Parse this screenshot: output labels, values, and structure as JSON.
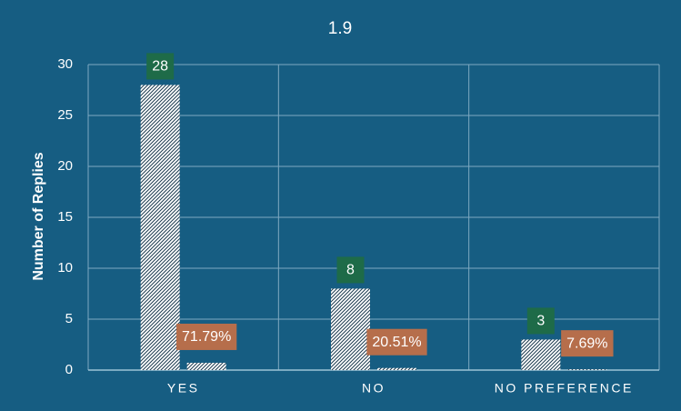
{
  "chart_data": {
    "type": "bar",
    "title": "1.9",
    "y_label": "Number of Replies",
    "categories": [
      "YES",
      "NO",
      "NO PREFERENCE"
    ],
    "series": [
      {
        "color": "#ffffff",
        "label_color": "#1e6b48",
        "values": [
          28,
          8,
          3
        ]
      },
      {
        "color": "#ffffff",
        "label_color": "#b66e4b",
        "values": [
          0.7179,
          0.2051,
          0.0769
        ],
        "value_labels": [
          "71.79%",
          "20.51%",
          "7.69%"
        ]
      }
    ],
    "ylim": [
      0,
      30
    ],
    "yticks": [
      0,
      5,
      10,
      15,
      20,
      25,
      30
    ],
    "grid": true
  }
}
